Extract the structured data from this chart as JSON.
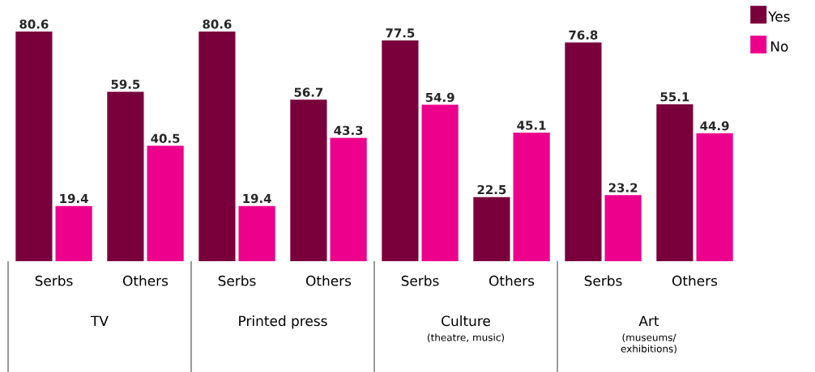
{
  "chart_data": {
    "type": "bar",
    "categories": [
      "Serbs",
      "Others",
      "Serbs",
      "Others",
      "Serbs",
      "Others",
      "Serbs",
      "Others"
    ],
    "series": [
      {
        "name": "Yes",
        "color": "#7a003c",
        "values": [
          80.6,
          59.5,
          80.6,
          56.7,
          77.5,
          22.5,
          76.8,
          55.1
        ]
      },
      {
        "name": "No",
        "color": "#ec008c",
        "values": [
          19.4,
          40.5,
          19.4,
          43.3,
          54.9,
          45.1,
          23.2,
          44.9
        ]
      }
    ],
    "annotations": [
      "TV",
      "Printed press",
      "Culture",
      "Art",
      "(theatre, music)",
      "(museums/ exhibitions)"
    ],
    "data_labels": true,
    "legend": "top right"
  }
}
